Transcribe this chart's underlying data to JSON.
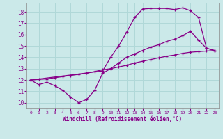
{
  "background_color": "#cbe9e9",
  "grid_color": "#b0d8d8",
  "line_color": "#880088",
  "xlabel": "Windchill (Refroidissement éolien,°C)",
  "xlim": [
    -0.5,
    23.5
  ],
  "ylim": [
    9.5,
    18.8
  ],
  "yticks": [
    10,
    11,
    12,
    13,
    14,
    15,
    16,
    17,
    18
  ],
  "xticks": [
    0,
    1,
    2,
    3,
    4,
    5,
    6,
    7,
    8,
    9,
    10,
    11,
    12,
    13,
    14,
    15,
    16,
    17,
    18,
    19,
    20,
    21,
    22,
    23
  ],
  "curve_linear_x": [
    0,
    1,
    2,
    3,
    4,
    5,
    6,
    7,
    8,
    9,
    10,
    11,
    12,
    13,
    14,
    15,
    16,
    17,
    18,
    19,
    20,
    21,
    22,
    23
  ],
  "curve_linear_y": [
    12.0,
    12.05,
    12.1,
    12.2,
    12.3,
    12.4,
    12.5,
    12.6,
    12.75,
    12.9,
    13.0,
    13.15,
    13.3,
    13.5,
    13.65,
    13.8,
    13.95,
    14.1,
    14.2,
    14.35,
    14.45,
    14.5,
    14.55,
    14.6
  ],
  "curve_mid_x": [
    0,
    1,
    2,
    3,
    4,
    5,
    6,
    7,
    8,
    9,
    10,
    11,
    12,
    13,
    14,
    15,
    16,
    17,
    18,
    19,
    20,
    21,
    22,
    23
  ],
  "curve_mid_y": [
    12.0,
    11.6,
    11.8,
    11.5,
    11.1,
    10.5,
    10.0,
    10.3,
    11.1,
    12.6,
    13.0,
    13.5,
    14.0,
    14.3,
    14.6,
    14.9,
    15.1,
    15.4,
    15.6,
    15.9,
    16.3,
    15.5,
    14.8,
    14.6
  ],
  "curve_top_x": [
    0,
    9,
    10,
    11,
    12,
    13,
    14,
    15,
    16,
    17,
    18,
    19,
    20,
    21,
    22,
    23
  ],
  "curve_top_y": [
    12.0,
    12.8,
    14.0,
    15.0,
    16.2,
    17.5,
    18.25,
    18.3,
    18.3,
    18.3,
    18.2,
    18.35,
    18.1,
    17.5,
    14.8,
    14.6
  ]
}
